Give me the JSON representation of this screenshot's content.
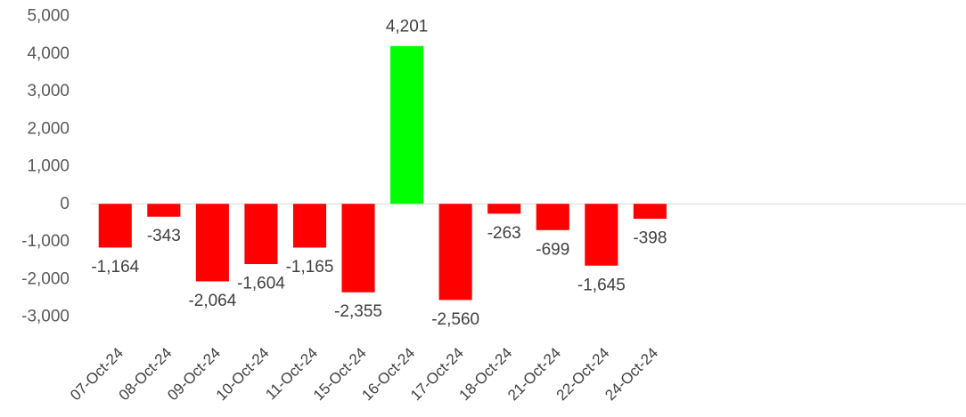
{
  "chart_data": {
    "type": "bar",
    "title": "",
    "xlabel": "",
    "ylabel": "",
    "categories": [
      "07-Oct-24",
      "08-Oct-24",
      "09-Oct-24",
      "10-Oct-24",
      "11-Oct-24",
      "15-Oct-24",
      "16-Oct-24",
      "17-Oct-24",
      "18-Oct-24",
      "21-Oct-24",
      "22-Oct-24",
      "24-Oct-24"
    ],
    "values": [
      -1164,
      -343,
      -2064,
      -1604,
      -1165,
      -2355,
      4201,
      -2560,
      -263,
      -699,
      -1645,
      -398
    ],
    "value_labels": [
      "-1,164",
      "-343",
      "-2,064",
      "-1,604",
      "-1,165",
      "-2,355",
      "4,201",
      "-2,560",
      "-263",
      "-699",
      "-1,645",
      "-398"
    ],
    "total_slots": 18,
    "ylim": [
      -3000,
      5000
    ],
    "yticks": [
      5000,
      4000,
      3000,
      2000,
      1000,
      0,
      -1000,
      -2000,
      -3000
    ],
    "ytick_labels": [
      "5,000",
      "4,000",
      "3,000",
      "2,000",
      "1,000",
      "0",
      "-1,000",
      "-2,000",
      "-3,000"
    ],
    "gridlines": false,
    "legend": "none",
    "colors": {
      "positive": "#00ff00",
      "negative": "#ff0000",
      "zero_line": "#d9d9d9"
    }
  }
}
